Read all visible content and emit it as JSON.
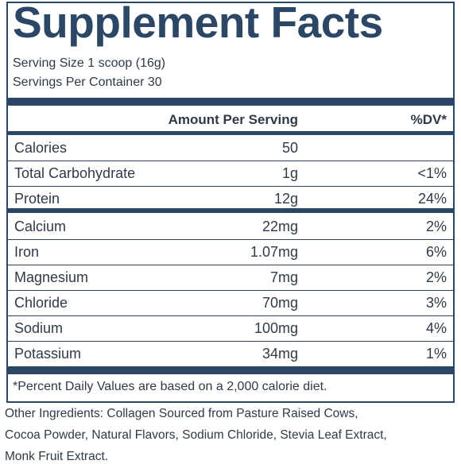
{
  "header": {
    "title": "Supplement Facts",
    "serving_size": "Serving Size 1 scoop (16g)",
    "servings": "Servings Per Container 30"
  },
  "table": {
    "columns": [
      "Amount Per Serving",
      "%DV*"
    ],
    "groups": [
      {
        "rows": [
          [
            "Calories",
            "50",
            null
          ],
          [
            "Total Carbohydrate",
            "1g",
            "<1%"
          ],
          [
            "Protein",
            "12g",
            "24%"
          ]
        ]
      },
      {
        "rows": [
          [
            "Calcium",
            "22mg",
            "2%"
          ],
          [
            "Iron",
            "1.07mg",
            "6%"
          ],
          [
            "Magnesium",
            "7mg",
            "2%"
          ],
          [
            "Chloride",
            "70mg",
            "3%"
          ],
          [
            "Sodium",
            "100mg",
            "4%"
          ],
          [
            "Potassium",
            "34mg",
            "1%"
          ]
        ]
      }
    ]
  },
  "footnote": "*Percent Daily Values are based on a 2,000 calorie diet.",
  "other_ingredients": [
    "Other Ingredients: Collagen Sourced from Pasture Raised Cows,",
    "Cocoa Powder, Natural Flavors, Sodium Chloride, Stevia Leaf Extract,",
    "Monk Fruit Extract."
  ]
}
